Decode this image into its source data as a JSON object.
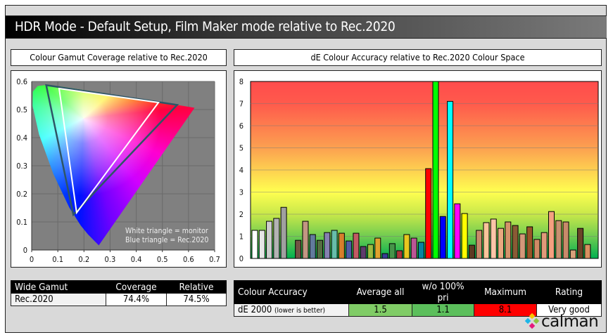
{
  "title": "HDR Mode - Default Setup, Film Maker mode relative to Rec.2020",
  "gamut_panel": {
    "header": "Colour Gamut Coverage relative to Rec.2020",
    "legend_white": "White triangle = monitor",
    "legend_blue": "Blue triangle = Rec.2020"
  },
  "de_panel": {
    "header": "dE Colour Accuracy relative to Rec.2020 Colour Space"
  },
  "chart_data": [
    {
      "type": "scatter",
      "chart": "CIE 1976 u'v' gamut",
      "xlim": [
        0,
        0.7
      ],
      "ylim": [
        0,
        0.6
      ],
      "x_ticks": [
        "0",
        "0.1",
        "0.2",
        "0.3",
        "0.4",
        "0.5",
        "0.6",
        "0.7"
      ],
      "y_ticks": [
        "0",
        "0.1",
        "0.2",
        "0.3",
        "0.4",
        "0.5",
        "0.6"
      ],
      "grid": true,
      "rec2020_triangle": [
        [
          0.5566,
          0.5165
        ],
        [
          0.0556,
          0.5868
        ],
        [
          0.1593,
          0.1258
        ]
      ],
      "monitor_triangle": [
        [
          0.485,
          0.525
        ],
        [
          0.105,
          0.575
        ],
        [
          0.172,
          0.133
        ]
      ],
      "white_point": [
        0.1978,
        0.4683
      ],
      "colors": {
        "rec2020": "#2e5566",
        "monitor": "#ffffff",
        "background": "#808080"
      }
    },
    {
      "type": "bar",
      "ylim": [
        0,
        8
      ],
      "y_ticks": [
        "0",
        "1",
        "2",
        "3",
        "4",
        "5",
        "6",
        "7",
        "8"
      ],
      "grid": true,
      "values": [
        1.27,
        1.27,
        1.68,
        1.81,
        2.31,
        null,
        0.82,
        1.68,
        1.08,
        0.82,
        1.17,
        1.27,
        1.14,
        0.79,
        1.14,
        0.54,
        0.63,
        0.92,
        0.22,
        0.67,
        0.35,
        1.08,
        0.92,
        0.73,
        4.06,
        8.1,
        1.9,
        7.1,
        2.47,
        2.03,
        0.6,
        1.27,
        1.62,
        1.78,
        1.36,
        1.65,
        1.49,
        1.11,
        1.43,
        0.86,
        1.17,
        2.12,
        1.71,
        1.65,
        0.38,
        1.36,
        0.63
      ],
      "bar_colors": [
        "#ffffff",
        "#e6e6e6",
        "#cccccc",
        "#b3b3b3",
        "#a0a0a0",
        null,
        "#735244",
        "#c29682",
        "#627a9d",
        "#576c43",
        "#8580b1",
        "#67bdaa",
        "#d67e2c",
        "#505ba6",
        "#c15a63",
        "#5e3c6c",
        "#9dbc40",
        "#e0a32e",
        "#383d96",
        "#469449",
        "#af363c",
        "#e7c71f",
        "#bb5695",
        "#0885a1",
        "#ff0000",
        "#00ff00",
        "#0000ff",
        "#00ffff",
        "#ff00ff",
        "#ffff00",
        "#5e3a22",
        "#c8896a",
        "#f8c49a",
        "#fdc5a8",
        "#e8a880",
        "#d4926a",
        "#8a5a35",
        "#d4987a",
        "#9a5528",
        "#d08a66",
        "#e09a7a",
        "#f5a080",
        "#c89070",
        "#c88a6a",
        "#d8a07a",
        "#6a4428",
        "#d89060"
      ],
      "background_scale": {
        "0": "#00b050",
        "1": "#70cc50",
        "2": "#c8e84a",
        "3": "#ffff50",
        "5": "#fca050",
        "7": "#ff5a4c",
        "8": "#ff4c4c"
      }
    }
  ],
  "gamut_table": {
    "headers": [
      "Wide Gamut",
      "Coverage",
      "Relative"
    ],
    "row": [
      "Rec.2020",
      "74.4%",
      "74.5%"
    ]
  },
  "accuracy_table": {
    "headers": [
      "Colour Accuracy",
      "Average all",
      "w/o 100% pri",
      "Maximum",
      "Rating"
    ],
    "label": "dE 2000",
    "label_note": "(lower is better)",
    "values": [
      "1.5",
      "1.1",
      "8.1",
      "Very good"
    ],
    "colors": {
      "average": "#80cc66",
      "without_primaries": "#5cbf5c",
      "maximum": "#ff0000"
    }
  },
  "logo": {
    "text": "calman"
  }
}
